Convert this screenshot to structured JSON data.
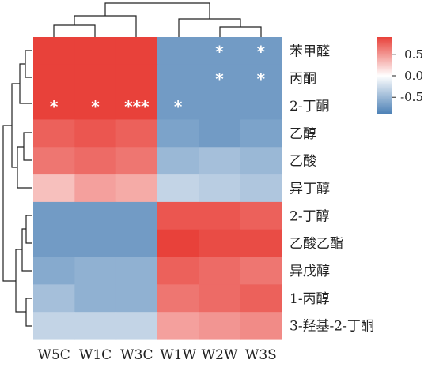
{
  "chart_data": {
    "type": "heatmap",
    "title": "",
    "columns": [
      "W5C",
      "W1C",
      "W3C",
      "W1W",
      "W2W",
      "W3S"
    ],
    "rows": [
      "苯甲醛",
      "丙酮",
      "2-丁酮",
      "乙醇",
      "乙酸",
      "异丁醇",
      "2-丁醇",
      "乙酸乙酯",
      "异戊醇",
      "1-丙醇",
      "3-羟基-2-丁酮"
    ],
    "values": [
      [
        0.9,
        0.9,
        0.9,
        -0.7,
        -0.7,
        -0.7
      ],
      [
        0.9,
        0.9,
        0.9,
        -0.7,
        -0.7,
        -0.7
      ],
      [
        0.9,
        0.9,
        0.9,
        -0.7,
        -0.7,
        -0.7
      ],
      [
        0.75,
        0.8,
        0.75,
        -0.65,
        -0.7,
        -0.65
      ],
      [
        0.65,
        0.7,
        0.65,
        -0.5,
        -0.45,
        -0.5
      ],
      [
        0.3,
        0.45,
        0.4,
        -0.3,
        -0.35,
        -0.4
      ],
      [
        -0.7,
        -0.7,
        -0.7,
        0.8,
        0.8,
        0.75
      ],
      [
        -0.7,
        -0.7,
        -0.7,
        0.9,
        0.85,
        0.85
      ],
      [
        -0.6,
        -0.55,
        -0.55,
        0.75,
        0.7,
        0.65
      ],
      [
        -0.45,
        -0.55,
        -0.55,
        0.65,
        0.7,
        0.75
      ],
      [
        -0.3,
        -0.3,
        -0.3,
        0.45,
        0.5,
        0.55
      ]
    ],
    "annotations": [
      {
        "row": 0,
        "col": 4,
        "text": "*"
      },
      {
        "row": 0,
        "col": 5,
        "text": "*"
      },
      {
        "row": 1,
        "col": 4,
        "text": "*"
      },
      {
        "row": 1,
        "col": 5,
        "text": "*"
      },
      {
        "row": 2,
        "col": 0,
        "text": "*"
      },
      {
        "row": 2,
        "col": 1,
        "text": "*"
      },
      {
        "row": 2,
        "col": 2,
        "text": "***"
      },
      {
        "row": 2,
        "col": 3,
        "text": "*"
      }
    ],
    "color_scale": {
      "min": -0.9,
      "max": 0.9,
      "low_color": "#4a7fb5",
      "mid_color": "#ffffff",
      "high_color": "#e8413a",
      "ticks": [
        0.5,
        0.0,
        -0.5
      ],
      "tick_labels": [
        "0.5",
        "0.0",
        "-0.5"
      ]
    },
    "legend": "right",
    "grid": false
  }
}
